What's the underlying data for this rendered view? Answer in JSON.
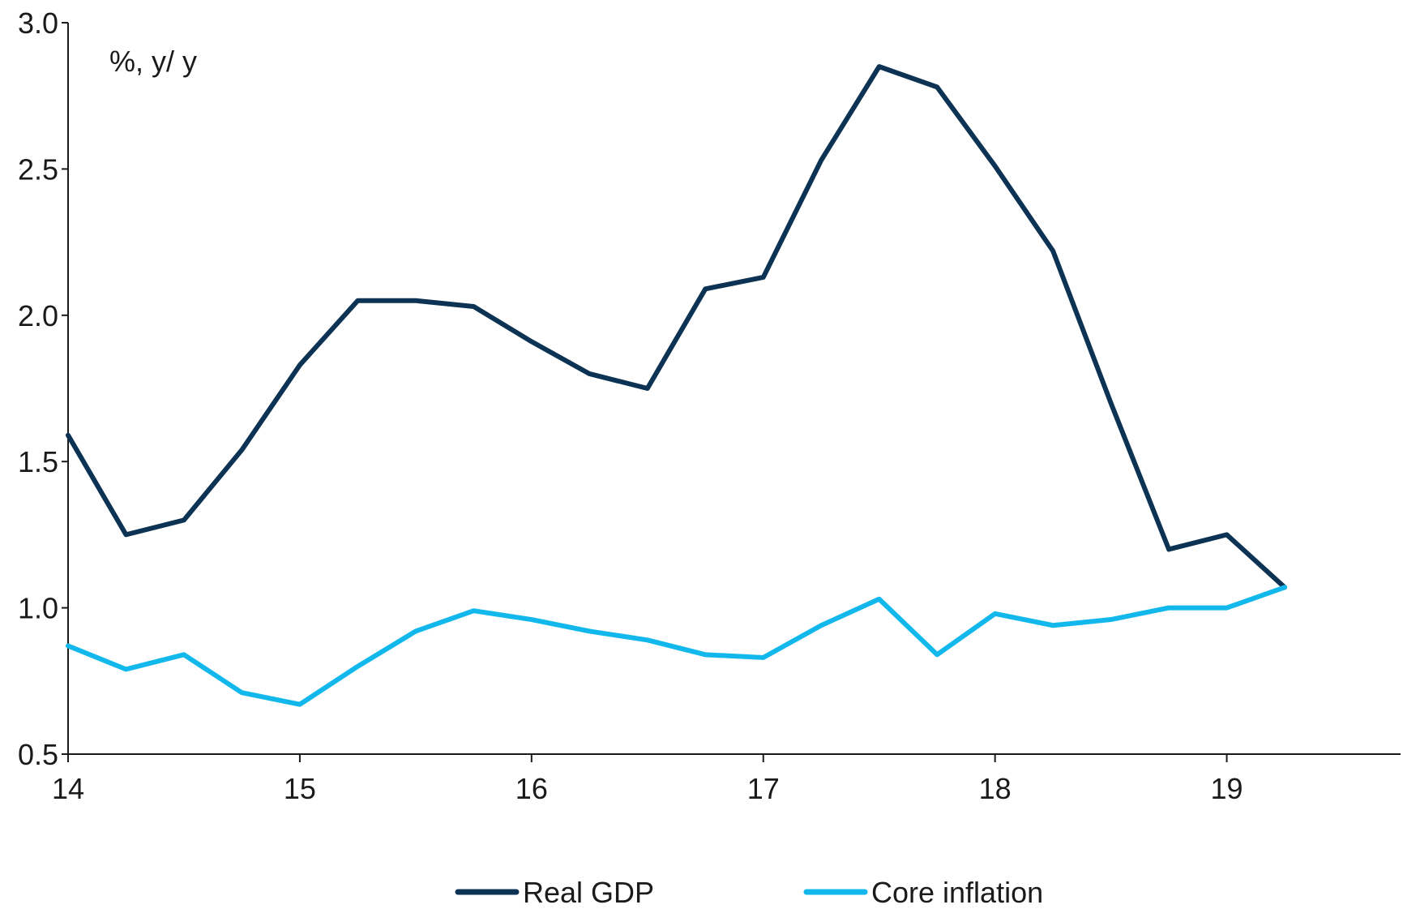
{
  "chart_data": {
    "type": "line",
    "title": "",
    "unit_label": "%, y/ y",
    "xlabel": "",
    "ylabel": "",
    "xlim": [
      14,
      19.75
    ],
    "ylim": [
      0.5,
      3.0
    ],
    "x_ticks": [
      14,
      15,
      16,
      17,
      18,
      19
    ],
    "x_tick_labels": [
      "14",
      "15",
      "16",
      "17",
      "18",
      "19"
    ],
    "y_ticks": [
      0.5,
      1.0,
      1.5,
      2.0,
      2.5,
      3.0
    ],
    "y_tick_labels": [
      "0.5",
      "1.0",
      "1.5",
      "2.0",
      "2.5",
      "3.0"
    ],
    "grid": false,
    "legend_position": "bottom",
    "x": [
      14.0,
      14.25,
      14.5,
      14.75,
      15.0,
      15.25,
      15.5,
      15.75,
      16.0,
      16.25,
      16.5,
      16.75,
      17.0,
      17.25,
      17.5,
      17.75,
      18.0,
      18.25,
      18.5,
      18.75,
      19.0,
      19.25
    ],
    "series": [
      {
        "name": "Real GDP",
        "color": "#0d3354",
        "values": [
          1.59,
          1.25,
          1.3,
          1.54,
          1.83,
          2.05,
          2.05,
          2.03,
          1.91,
          1.8,
          1.75,
          2.09,
          2.13,
          2.53,
          2.85,
          2.78,
          2.51,
          2.22,
          1.7,
          1.2,
          1.25,
          1.07
        ]
      },
      {
        "name": "Core inflation",
        "color": "#12b8ec",
        "values": [
          0.87,
          0.79,
          0.84,
          0.71,
          0.67,
          0.8,
          0.92,
          0.99,
          0.96,
          0.92,
          0.89,
          0.84,
          0.83,
          0.94,
          1.03,
          0.84,
          0.98,
          0.94,
          0.96,
          1.0,
          1.0,
          1.07
        ]
      }
    ]
  }
}
